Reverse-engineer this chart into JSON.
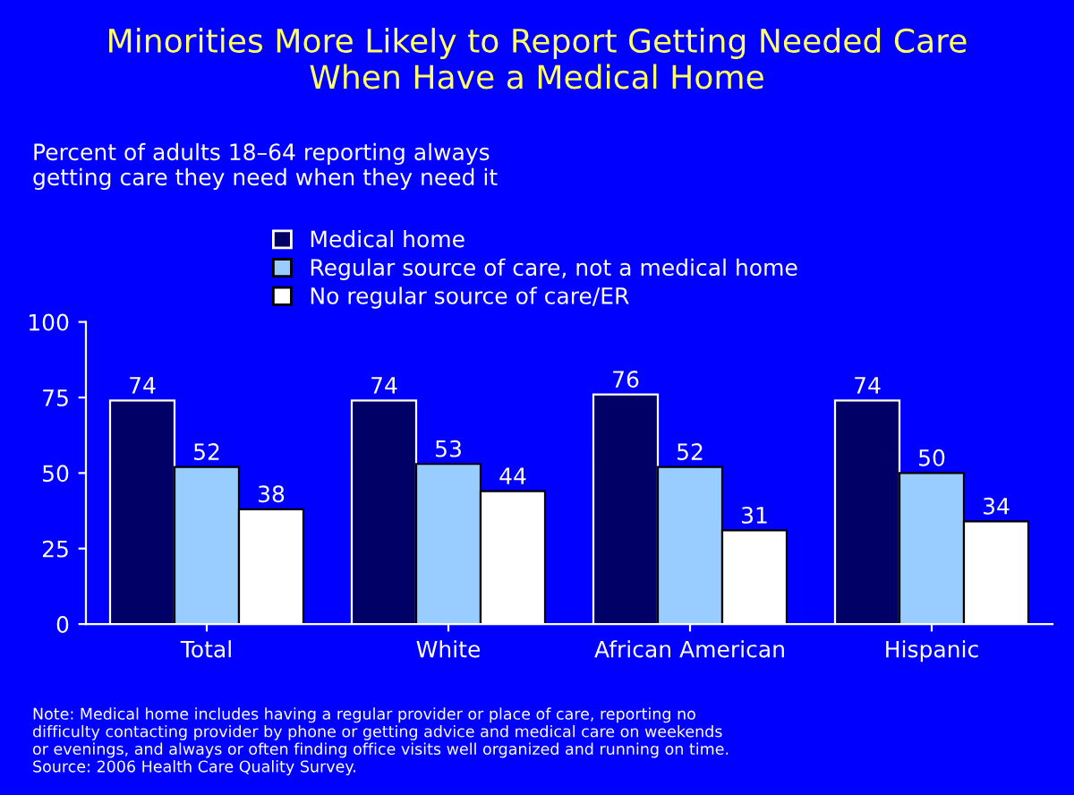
{
  "chart_data": {
    "type": "bar",
    "title": "Minorities More Likely to Report Getting Needed Care\nWhen Have a Medical Home",
    "subtitle": "Percent of adults 18–64 reporting always\ngetting care they need when they need it",
    "categories": [
      "Total",
      "White",
      "African American",
      "Hispanic"
    ],
    "series": [
      {
        "name": "Medical home",
        "color": "#000066",
        "values": [
          74,
          74,
          76,
          74
        ]
      },
      {
        "name": "Regular source of care, not a medical home",
        "color": "#99ccff",
        "values": [
          52,
          53,
          52,
          50
        ]
      },
      {
        "name": "No regular source of care/ER",
        "color": "#ffffff",
        "values": [
          38,
          44,
          31,
          34
        ]
      }
    ],
    "ylim": [
      0,
      100
    ],
    "yticks": [
      0,
      25,
      50,
      75,
      100
    ],
    "grid": false,
    "legend": "top left",
    "data_labels": true,
    "annotations": [
      "Note: Medical home includes having a regular provider or place of care, reporting no\ndifficulty contacting provider by phone or getting advice and medical care on weekends\nor evenings, and always or often finding office visits well organized and running on time.\nSource: 2006 Health Care Quality Survey."
    ]
  }
}
